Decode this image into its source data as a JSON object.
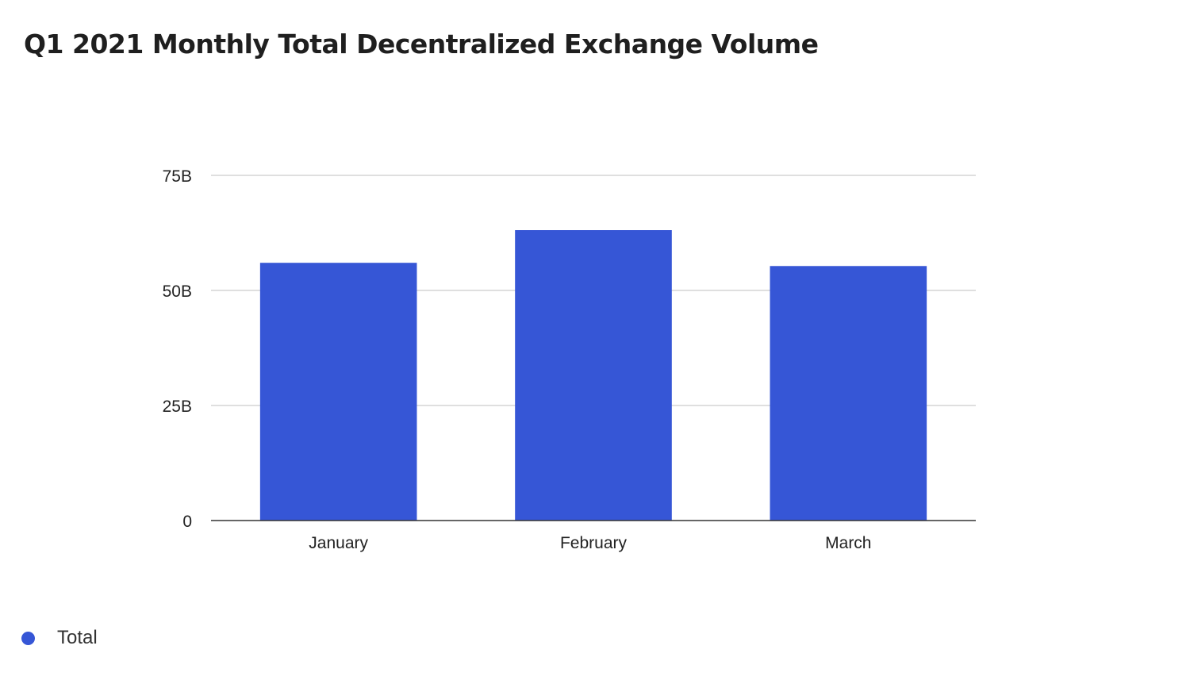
{
  "chart_data": {
    "type": "bar",
    "title": "Q1 2021 Monthly Total Decentralized Exchange Volume",
    "categories": [
      "January",
      "February",
      "March"
    ],
    "series": [
      {
        "name": "Total",
        "values": [
          56.0,
          63.1,
          55.3
        ],
        "color": "#3656d6"
      }
    ],
    "y_ticks": [
      {
        "value": 0,
        "label": "0"
      },
      {
        "value": 25,
        "label": "25B"
      },
      {
        "value": 50,
        "label": "50B"
      },
      {
        "value": 75,
        "label": "75B"
      }
    ],
    "ylim": [
      0,
      75
    ],
    "xlabel": "",
    "ylabel": "",
    "grid": true,
    "legend_position": "bottom-left"
  }
}
